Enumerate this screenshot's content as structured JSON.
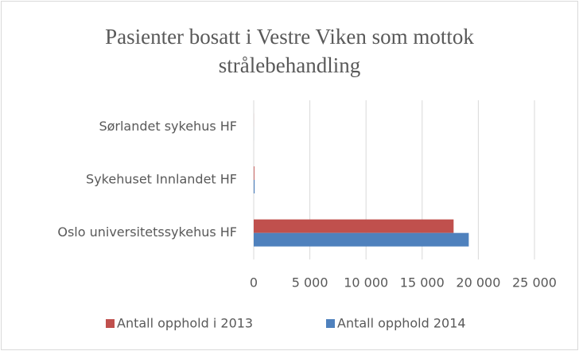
{
  "chart_data": {
    "type": "barh",
    "title": "Pasienter bosatt i Vestre Viken som mottok strålebehandling",
    "categories": [
      "Sørlandet sykehus HF",
      "Sykehuset Innlandet HF",
      "Oslo universitetssykehus HF"
    ],
    "series": [
      {
        "name": "Antall opphold i 2013",
        "color": "#c0504d",
        "values": [
          5,
          60,
          17800
        ]
      },
      {
        "name": "Antall opphold 2014",
        "color": "#4f81bd",
        "values": [
          5,
          80,
          19150
        ]
      }
    ],
    "xlim": [
      0,
      25000
    ],
    "xticks": [
      0,
      {
        "value": 5000,
        "label": "5 000"
      },
      {
        "value": 10000,
        "label": "10 000"
      },
      {
        "value": 15000,
        "label": "15 000"
      },
      {
        "value": 20000,
        "label": "20 000"
      },
      {
        "value": 25000,
        "label": "25 000"
      }
    ],
    "grid": true,
    "legend": "bottom"
  }
}
